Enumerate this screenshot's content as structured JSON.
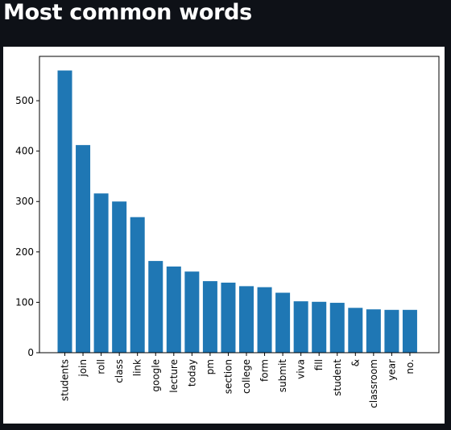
{
  "header": {
    "title": "Most common words"
  },
  "chart_data": {
    "type": "bar",
    "title": "",
    "xlabel": "",
    "ylabel": "",
    "categories": [
      "students",
      "join",
      "roll",
      "class",
      "link",
      "google",
      "lecture",
      "today",
      "pm",
      "section",
      "college",
      "form",
      "submit",
      "viva",
      "fill",
      "student",
      "&",
      "classroom",
      "year",
      "no."
    ],
    "values": [
      560,
      412,
      316,
      300,
      269,
      182,
      171,
      161,
      142,
      139,
      132,
      130,
      119,
      102,
      101,
      99,
      89,
      86,
      85,
      85
    ],
    "yticks": [
      0,
      100,
      200,
      300,
      400,
      500
    ],
    "ylim": [
      0,
      588
    ],
    "grid": false,
    "legend": "none",
    "bar_color": "#1f77b4"
  }
}
